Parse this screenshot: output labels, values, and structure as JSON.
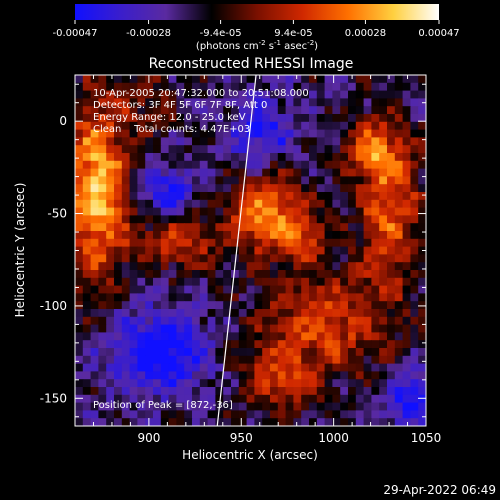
{
  "colorbar": {
    "tick_labels": [
      "-0.00047",
      "-0.00028",
      "-9.4e-05",
      "9.4e-05",
      "0.00028",
      "0.00047"
    ],
    "tick_values": [
      -0.00047,
      -0.00028,
      -9.4e-05,
      9.4e-05,
      0.00028,
      0.00047
    ],
    "range": [
      -0.00047,
      0.00047
    ],
    "unit_prefix": "(photons cm",
    "unit_sup1": "-2",
    "unit_mid": " s",
    "unit_sup2": "-1",
    "unit_mid2": " asec",
    "unit_sup3": "-2",
    "unit_suffix": ")",
    "colormap": [
      "#1010ff",
      "#3a1ecc",
      "#5a2aa0",
      "#000000",
      "#7a1000",
      "#d02800",
      "#ff7000",
      "#ffd040",
      "#ffffff"
    ]
  },
  "chart_data": {
    "type": "heatmap",
    "title": "Reconstructed RHESSI Image",
    "xlabel": "Heliocentric X (arcsec)",
    "ylabel": "Heliocentric Y (arcsec)",
    "xlim": [
      860,
      1050
    ],
    "ylim": [
      -165,
      25
    ],
    "x_ticks": [
      900,
      950,
      1000,
      1050
    ],
    "y_ticks": [
      0,
      -50,
      -100,
      -150
    ],
    "grid": false,
    "limb_line": [
      [
        958,
        25
      ],
      [
        937,
        -165
      ]
    ],
    "peak_position": [
      872,
      -36
    ],
    "sources": [
      {
        "x": 872,
        "y": -36,
        "sx": 12,
        "sy": 35,
        "amp": 1.0
      },
      {
        "x": 965,
        "y": -50,
        "sx": 15,
        "sy": 15,
        "amp": 0.85
      },
      {
        "x": 915,
        "y": -65,
        "sx": 16,
        "sy": 10,
        "amp": 0.6
      },
      {
        "x": 1030,
        "y": -45,
        "sx": 12,
        "sy": 30,
        "amp": 0.7
      },
      {
        "x": 1020,
        "y": -15,
        "sx": 10,
        "sy": 10,
        "amp": 0.55
      },
      {
        "x": 995,
        "y": -110,
        "sx": 25,
        "sy": 20,
        "amp": 0.6
      },
      {
        "x": 970,
        "y": -140,
        "sx": 14,
        "sy": 12,
        "amp": 0.5
      },
      {
        "x": 985,
        "y": -65,
        "sx": 8,
        "sy": 8,
        "amp": 0.4
      },
      {
        "x": 900,
        "y": 10,
        "sx": 10,
        "sy": 12,
        "amp": 0.3
      }
    ],
    "negative_sources": [
      {
        "x": 905,
        "y": -125,
        "sx": 18,
        "sy": 15,
        "amp": 0.7
      },
      {
        "x": 910,
        "y": -40,
        "sx": 10,
        "sy": 10,
        "amp": 0.5
      },
      {
        "x": 960,
        "y": -5,
        "sx": 12,
        "sy": 12,
        "amp": 0.5
      },
      {
        "x": 1040,
        "y": -150,
        "sx": 10,
        "sy": 12,
        "amp": 0.5
      }
    ]
  },
  "annotations": {
    "time_range": "10-Apr-2005 20:47:32.000 to 20:51:08.000",
    "detectors": "Detectors: 3F 4F 5F 6F 7F 8F, Att 0",
    "energy": "Energy Range: 12.0 - 25.0 keV",
    "clean": "Clean    Total counts: 4.47E+03",
    "peak": "Position of Peak = [872,-36]"
  },
  "timestamp": "29-Apr-2022 06:49"
}
